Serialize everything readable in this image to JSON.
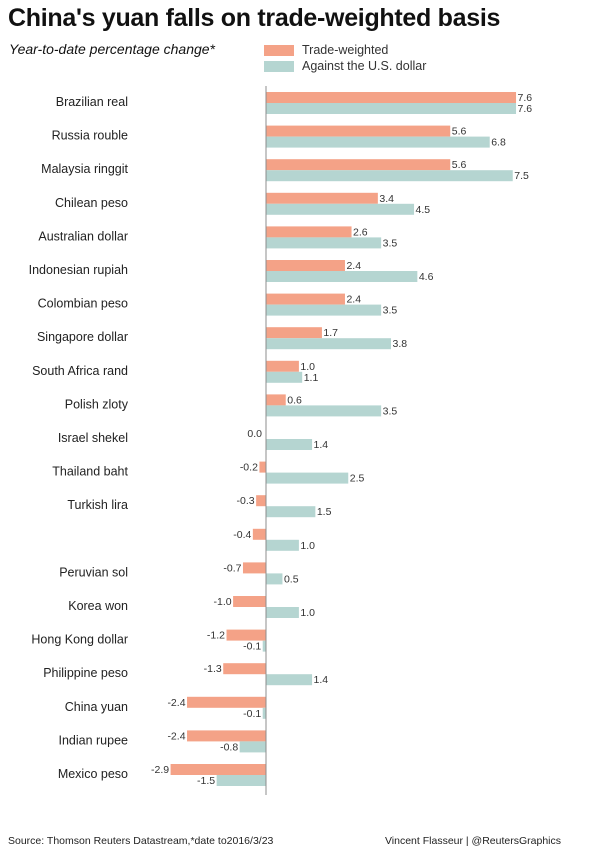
{
  "title": "China's yuan falls on trade-weighted basis",
  "subtitle": "Year-to-date percentage change*",
  "footer": {
    "source": "Source: Thomson Reuters Datastream,*date to2016/3/23",
    "credit": "Vincent Flasseur | @ReutersGraphics"
  },
  "colors": {
    "trade_weighted": "#f4a287",
    "usd": "#b5d5d1",
    "axis": "#8c8c8c"
  },
  "chart_data": {
    "type": "bar",
    "orientation": "horizontal",
    "title": "China's yuan falls on trade-weighted basis",
    "subtitle": "Year-to-date percentage change*",
    "legend_position": "top",
    "categories": [
      "Brazilian real",
      "Russia rouble",
      "Malaysia ringgit",
      "Chilean peso",
      "Australian dollar",
      "Indonesian rupiah",
      "Colombian peso",
      "Singapore dollar",
      "South Africa rand",
      "Polish zloty",
      "Israel shekel",
      "Thailand baht",
      "Turkish lira",
      "",
      "Peruvian sol",
      "Korea won",
      "Hong Kong dollar",
      "Philippine peso",
      "China yuan",
      "Indian rupee",
      "Mexico peso"
    ],
    "series": [
      {
        "name": "Trade-weighted",
        "values": [
          7.6,
          5.6,
          5.6,
          3.4,
          2.6,
          2.4,
          2.4,
          1.7,
          1.0,
          0.6,
          0.0,
          -0.2,
          -0.3,
          -0.4,
          -0.7,
          -1.0,
          -1.2,
          -1.3,
          -2.4,
          -2.4,
          -2.9
        ],
        "labels": [
          "7.6",
          "5.6",
          "5.6",
          "3.4",
          "2.6",
          "2.4",
          "2.4",
          "1.7",
          "1.0",
          "0.6",
          "0.0",
          "-0.2",
          "-0.3",
          "-0.4",
          "-0.7",
          "-1.0",
          "-1.2",
          "-1.3",
          "-2.4",
          "-2.4",
          "-2.9"
        ]
      },
      {
        "name": "Against the U.S. dollar",
        "values": [
          7.6,
          6.8,
          7.5,
          4.5,
          3.5,
          4.6,
          3.5,
          3.8,
          1.1,
          3.5,
          1.4,
          2.5,
          1.5,
          1.0,
          0.5,
          1.0,
          -0.1,
          1.4,
          -0.1,
          -0.8,
          -1.5
        ],
        "labels": [
          "7.6",
          "6.8",
          "7.5",
          "4.5",
          "3.5",
          "4.6",
          "3.5",
          "3.8",
          "1.1",
          "3.5",
          "1.4",
          "2.5",
          "1.5",
          "1.0",
          "0.5",
          "1.0",
          "-0.1",
          "1.4",
          "-0.1",
          "-0.8",
          "-1.5"
        ]
      }
    ],
    "xlim": [
      -3.5,
      9.0
    ],
    "grid": false
  }
}
